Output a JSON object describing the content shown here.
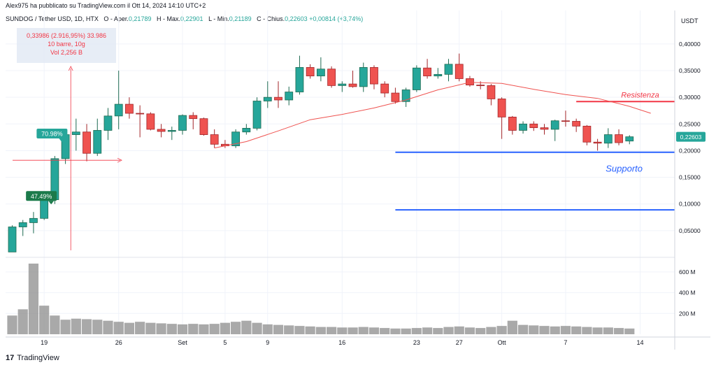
{
  "header": {
    "published": "Alex975 ha pubblicato su TradingView.com il Ott 14, 2024 14:10 UTC+2"
  },
  "ohlc": {
    "symbol": "SUNDOG / Tether USD, 1D, HTX",
    "open_label": "O - Aper.",
    "open": "0,21789",
    "high_label": "H - Max.",
    "high": "0,22901",
    "low_label": "L - Min.",
    "low": "0,21189",
    "close_label": "C - Chius.",
    "close": "0,22603",
    "change": "+0,00814 (+3,74%)"
  },
  "footer": {
    "brand": "TradingView"
  },
  "chart_data": {
    "type": "candlestick",
    "currency": "USDT",
    "ylim": [
      0.0,
      0.43
    ],
    "y_ticks": [
      0.05,
      0.1,
      0.15,
      0.2,
      0.25,
      0.3,
      0.35,
      0.4
    ],
    "y_tick_labels": [
      "0,05000",
      "0,10000",
      "0,15000",
      "0,20000",
      "0,25000",
      "0,30000",
      "0,35000",
      "0,40000"
    ],
    "volume_ticks": [
      200,
      400,
      600
    ],
    "volume_tick_labels": [
      "200 M",
      "400 M",
      "600 M"
    ],
    "volume_max": 700,
    "x_tick_labels": [
      {
        "i": 3,
        "label": "19"
      },
      {
        "i": 10,
        "label": "26"
      },
      {
        "i": 16,
        "label": "Set"
      },
      {
        "i": 20,
        "label": "5"
      },
      {
        "i": 24,
        "label": "9"
      },
      {
        "i": 31,
        "label": "16"
      },
      {
        "i": 38,
        "label": "23"
      },
      {
        "i": 42,
        "label": "27"
      },
      {
        "i": 46,
        "label": "Ott"
      },
      {
        "i": 52,
        "label": "7"
      },
      {
        "i": 59,
        "label": "14"
      }
    ],
    "candles": [
      {
        "o": 0.01,
        "h": 0.06,
        "l": 0.01,
        "c": 0.057,
        "v": 180
      },
      {
        "o": 0.057,
        "h": 0.07,
        "l": 0.04,
        "c": 0.065,
        "v": 240
      },
      {
        "o": 0.065,
        "h": 0.085,
        "l": 0.045,
        "c": 0.073,
        "v": 680
      },
      {
        "o": 0.073,
        "h": 0.112,
        "l": 0.07,
        "c": 0.108,
        "v": 275
      },
      {
        "o": 0.108,
        "h": 0.19,
        "l": 0.1,
        "c": 0.185,
        "v": 180
      },
      {
        "o": 0.185,
        "h": 0.233,
        "l": 0.175,
        "c": 0.23,
        "v": 140
      },
      {
        "o": 0.23,
        "h": 0.26,
        "l": 0.2,
        "c": 0.235,
        "v": 150
      },
      {
        "o": 0.235,
        "h": 0.25,
        "l": 0.18,
        "c": 0.195,
        "v": 145
      },
      {
        "o": 0.195,
        "h": 0.26,
        "l": 0.19,
        "c": 0.238,
        "v": 140
      },
      {
        "o": 0.238,
        "h": 0.28,
        "l": 0.22,
        "c": 0.265,
        "v": 130
      },
      {
        "o": 0.265,
        "h": 0.35,
        "l": 0.24,
        "c": 0.287,
        "v": 120
      },
      {
        "o": 0.287,
        "h": 0.3,
        "l": 0.26,
        "c": 0.27,
        "v": 110
      },
      {
        "o": 0.27,
        "h": 0.285,
        "l": 0.225,
        "c": 0.269,
        "v": 120
      },
      {
        "o": 0.269,
        "h": 0.272,
        "l": 0.238,
        "c": 0.24,
        "v": 110
      },
      {
        "o": 0.24,
        "h": 0.25,
        "l": 0.225,
        "c": 0.236,
        "v": 105
      },
      {
        "o": 0.236,
        "h": 0.245,
        "l": 0.22,
        "c": 0.238,
        "v": 100
      },
      {
        "o": 0.238,
        "h": 0.268,
        "l": 0.23,
        "c": 0.266,
        "v": 95
      },
      {
        "o": 0.266,
        "h": 0.272,
        "l": 0.24,
        "c": 0.26,
        "v": 100
      },
      {
        "o": 0.26,
        "h": 0.262,
        "l": 0.228,
        "c": 0.23,
        "v": 95
      },
      {
        "o": 0.23,
        "h": 0.24,
        "l": 0.205,
        "c": 0.212,
        "v": 100
      },
      {
        "o": 0.212,
        "h": 0.22,
        "l": 0.205,
        "c": 0.209,
        "v": 110
      },
      {
        "o": 0.209,
        "h": 0.24,
        "l": 0.205,
        "c": 0.235,
        "v": 120
      },
      {
        "o": 0.235,
        "h": 0.25,
        "l": 0.23,
        "c": 0.242,
        "v": 130
      },
      {
        "o": 0.242,
        "h": 0.3,
        "l": 0.238,
        "c": 0.293,
        "v": 110
      },
      {
        "o": 0.293,
        "h": 0.33,
        "l": 0.28,
        "c": 0.3,
        "v": 95
      },
      {
        "o": 0.3,
        "h": 0.33,
        "l": 0.28,
        "c": 0.295,
        "v": 90
      },
      {
        "o": 0.295,
        "h": 0.32,
        "l": 0.285,
        "c": 0.31,
        "v": 85
      },
      {
        "o": 0.31,
        "h": 0.378,
        "l": 0.305,
        "c": 0.356,
        "v": 80
      },
      {
        "o": 0.356,
        "h": 0.362,
        "l": 0.335,
        "c": 0.34,
        "v": 75
      },
      {
        "o": 0.34,
        "h": 0.375,
        "l": 0.33,
        "c": 0.353,
        "v": 70
      },
      {
        "o": 0.353,
        "h": 0.358,
        "l": 0.318,
        "c": 0.322,
        "v": 70
      },
      {
        "o": 0.322,
        "h": 0.33,
        "l": 0.31,
        "c": 0.325,
        "v": 65
      },
      {
        "o": 0.325,
        "h": 0.35,
        "l": 0.318,
        "c": 0.32,
        "v": 65
      },
      {
        "o": 0.32,
        "h": 0.365,
        "l": 0.31,
        "c": 0.356,
        "v": 70
      },
      {
        "o": 0.356,
        "h": 0.36,
        "l": 0.315,
        "c": 0.325,
        "v": 65
      },
      {
        "o": 0.325,
        "h": 0.33,
        "l": 0.3,
        "c": 0.308,
        "v": 60
      },
      {
        "o": 0.308,
        "h": 0.318,
        "l": 0.288,
        "c": 0.292,
        "v": 55
      },
      {
        "o": 0.292,
        "h": 0.318,
        "l": 0.282,
        "c": 0.314,
        "v": 55
      },
      {
        "o": 0.314,
        "h": 0.36,
        "l": 0.31,
        "c": 0.355,
        "v": 60
      },
      {
        "o": 0.355,
        "h": 0.372,
        "l": 0.335,
        "c": 0.34,
        "v": 65
      },
      {
        "o": 0.34,
        "h": 0.355,
        "l": 0.335,
        "c": 0.343,
        "v": 60
      },
      {
        "o": 0.343,
        "h": 0.372,
        "l": 0.33,
        "c": 0.362,
        "v": 70
      },
      {
        "o": 0.362,
        "h": 0.382,
        "l": 0.33,
        "c": 0.335,
        "v": 75
      },
      {
        "o": 0.335,
        "h": 0.34,
        "l": 0.32,
        "c": 0.323,
        "v": 65
      },
      {
        "o": 0.323,
        "h": 0.33,
        "l": 0.315,
        "c": 0.322,
        "v": 60
      },
      {
        "o": 0.322,
        "h": 0.325,
        "l": 0.285,
        "c": 0.297,
        "v": 70
      },
      {
        "o": 0.297,
        "h": 0.3,
        "l": 0.222,
        "c": 0.263,
        "v": 80
      },
      {
        "o": 0.263,
        "h": 0.265,
        "l": 0.23,
        "c": 0.238,
        "v": 130
      },
      {
        "o": 0.238,
        "h": 0.255,
        "l": 0.232,
        "c": 0.25,
        "v": 90
      },
      {
        "o": 0.25,
        "h": 0.255,
        "l": 0.237,
        "c": 0.243,
        "v": 85
      },
      {
        "o": 0.243,
        "h": 0.25,
        "l": 0.23,
        "c": 0.24,
        "v": 80
      },
      {
        "o": 0.24,
        "h": 0.258,
        "l": 0.218,
        "c": 0.256,
        "v": 75
      },
      {
        "o": 0.256,
        "h": 0.275,
        "l": 0.245,
        "c": 0.255,
        "v": 80
      },
      {
        "o": 0.255,
        "h": 0.26,
        "l": 0.235,
        "c": 0.246,
        "v": 75
      },
      {
        "o": 0.246,
        "h": 0.248,
        "l": 0.21,
        "c": 0.216,
        "v": 70
      },
      {
        "o": 0.216,
        "h": 0.222,
        "l": 0.2,
        "c": 0.214,
        "v": 65
      },
      {
        "o": 0.214,
        "h": 0.242,
        "l": 0.205,
        "c": 0.23,
        "v": 65
      },
      {
        "o": 0.23,
        "h": 0.24,
        "l": 0.21,
        "c": 0.215,
        "v": 60
      },
      {
        "o": 0.218,
        "h": 0.229,
        "l": 0.212,
        "c": 0.226,
        "v": 55
      }
    ],
    "ma_line": [
      {
        "i": 19,
        "y": 0.205
      },
      {
        "i": 22,
        "y": 0.217
      },
      {
        "i": 25,
        "y": 0.237
      },
      {
        "i": 28,
        "y": 0.258
      },
      {
        "i": 31,
        "y": 0.268
      },
      {
        "i": 34,
        "y": 0.28
      },
      {
        "i": 37,
        "y": 0.295
      },
      {
        "i": 40,
        "y": 0.314
      },
      {
        "i": 43,
        "y": 0.328
      },
      {
        "i": 46,
        "y": 0.326
      },
      {
        "i": 49,
        "y": 0.315
      },
      {
        "i": 52,
        "y": 0.305
      },
      {
        "i": 55,
        "y": 0.298
      },
      {
        "i": 58,
        "y": 0.283
      },
      {
        "i": 60,
        "y": 0.27
      }
    ],
    "last_price_label": "0,22603",
    "last_price": 0.226,
    "levels": [
      {
        "name": "Resistenza",
        "value": 0.292,
        "from_i": 53.0,
        "to_i": 62.0,
        "color": "#f23645"
      },
      {
        "name": "Supporto",
        "value": 0.197,
        "from_i": 36.0,
        "to_i": 62.0,
        "color": "#2962ff"
      },
      {
        "name": "",
        "value": 0.089,
        "from_i": 36.0,
        "to_i": 62.0,
        "color": "#2962ff"
      }
    ],
    "measure": {
      "line1": "0,33986 (2.916,95%) 33.986",
      "line2": "10 barre, 10g",
      "line3": "Vol 2,256 B"
    },
    "price_tags": [
      {
        "i": 4,
        "value": 0.232,
        "label": "70.98%",
        "color": "#26a69a"
      },
      {
        "i": 3,
        "value": 0.115,
        "label": "47.49%",
        "color": "#1b7a4a"
      }
    ],
    "colors": {
      "up": "#26a69a",
      "down": "#ef5350",
      "volume": "#8c8c8c",
      "ma": "#ef5350"
    }
  }
}
